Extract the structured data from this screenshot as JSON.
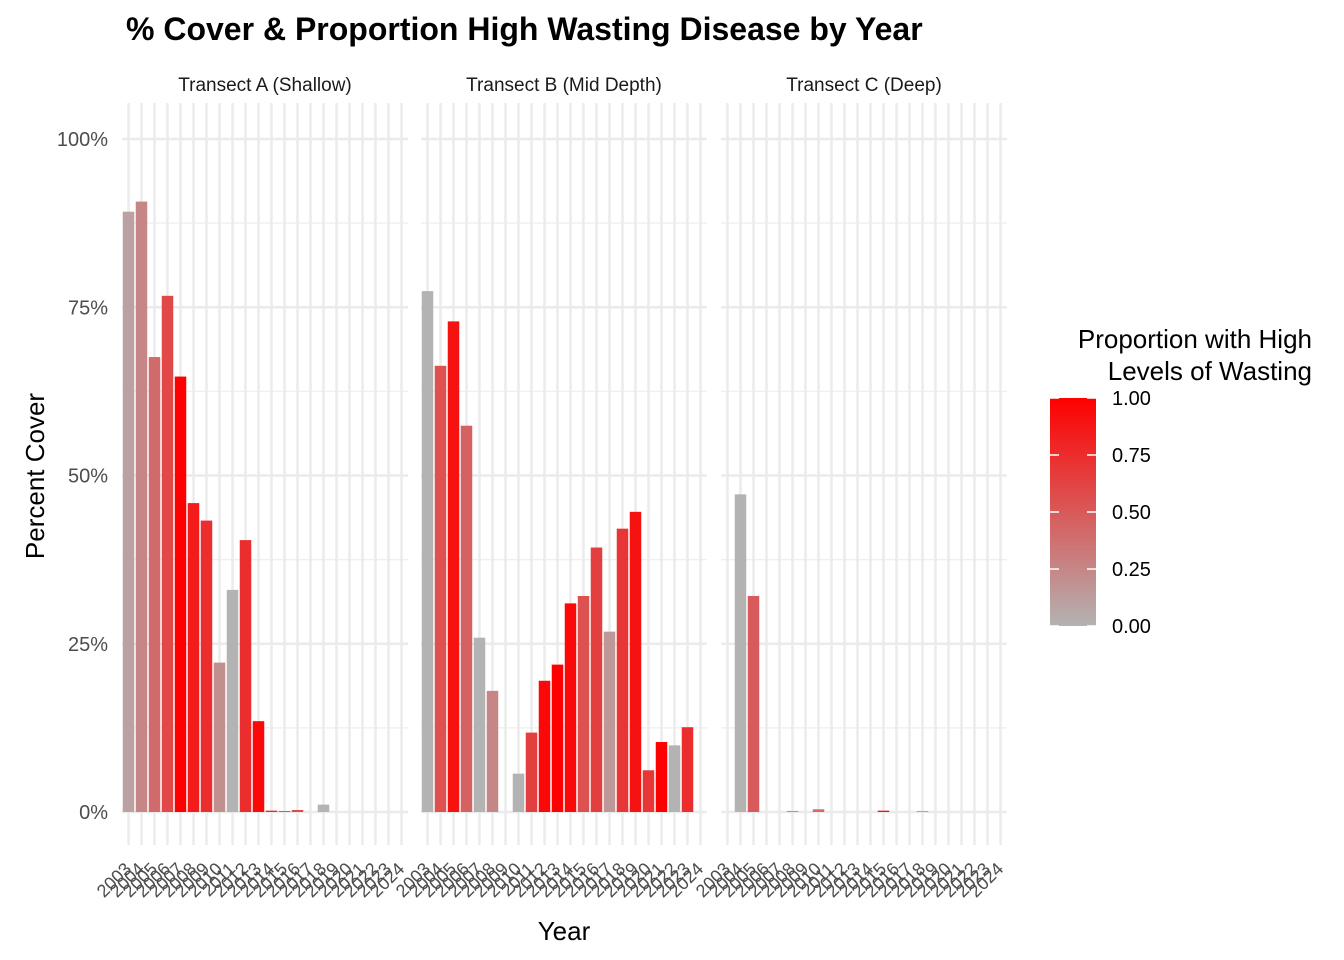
{
  "chart_data": {
    "type": "bar",
    "title": "% Cover & Proportion High Wasting Disease by Year",
    "xlabel": "Year",
    "ylabel": "Percent Cover",
    "ylim": [
      0,
      100
    ],
    "y_ticks": [
      "0%",
      "25%",
      "50%",
      "75%",
      "100%"
    ],
    "y_tick_values": [
      0,
      25,
      50,
      75,
      100
    ],
    "years": [
      2003,
      2004,
      2005,
      2006,
      2007,
      2008,
      2009,
      2010,
      2011,
      2012,
      2013,
      2014,
      2015,
      2016,
      2017,
      2018,
      2019,
      2020,
      2021,
      2022,
      2023,
      2024
    ],
    "grid": true,
    "legend": {
      "title_line1": "Proportion with High",
      "title_line2": "Levels of Wasting",
      "placement": "right",
      "ticks": [
        "1.00",
        "0.75",
        "0.50",
        "0.25",
        "0.00"
      ],
      "tick_values": [
        1.0,
        0.75,
        0.5,
        0.25,
        0.0
      ],
      "low_color": "#b3b3b3",
      "high_color": "#ff0000"
    },
    "facets": [
      {
        "name": "Transect A (Shallow)",
        "bars": [
          {
            "year": 2003,
            "cover": 89.2,
            "wasting": 0.1
          },
          {
            "year": 2004,
            "cover": 90.7,
            "wasting": 0.25
          },
          {
            "year": 2005,
            "cover": 67.6,
            "wasting": 0.4
          },
          {
            "year": 2006,
            "cover": 76.7,
            "wasting": 0.6
          },
          {
            "year": 2007,
            "cover": 64.7,
            "wasting": 1.0
          },
          {
            "year": 2008,
            "cover": 45.9,
            "wasting": 0.85
          },
          {
            "year": 2009,
            "cover": 43.3,
            "wasting": 0.75
          },
          {
            "year": 2010,
            "cover": 22.2,
            "wasting": 0.2
          },
          {
            "year": 2011,
            "cover": 33.0,
            "wasting": 0.0
          },
          {
            "year": 2012,
            "cover": 40.4,
            "wasting": 0.75
          },
          {
            "year": 2013,
            "cover": 13.5,
            "wasting": 0.95
          },
          {
            "year": 2014,
            "cover": 0.2,
            "wasting": 0.8
          },
          {
            "year": 2015,
            "cover": 0.15,
            "wasting": 0.5
          },
          {
            "year": 2016,
            "cover": 0.3,
            "wasting": 0.6
          },
          {
            "year": 2018,
            "cover": 1.1,
            "wasting": 0.0
          }
        ]
      },
      {
        "name": "Transect B (Mid Depth)",
        "bars": [
          {
            "year": 2003,
            "cover": 77.4,
            "wasting": 0.0
          },
          {
            "year": 2004,
            "cover": 66.3,
            "wasting": 0.55
          },
          {
            "year": 2005,
            "cover": 72.9,
            "wasting": 0.9
          },
          {
            "year": 2006,
            "cover": 57.4,
            "wasting": 0.45
          },
          {
            "year": 2007,
            "cover": 25.9,
            "wasting": 0.0
          },
          {
            "year": 2008,
            "cover": 18.0,
            "wasting": 0.25
          },
          {
            "year": 2010,
            "cover": 5.7,
            "wasting": 0.0
          },
          {
            "year": 2011,
            "cover": 11.8,
            "wasting": 0.65
          },
          {
            "year": 2012,
            "cover": 19.5,
            "wasting": 0.95
          },
          {
            "year": 2013,
            "cover": 21.9,
            "wasting": 1.0
          },
          {
            "year": 2014,
            "cover": 31.0,
            "wasting": 0.95
          },
          {
            "year": 2015,
            "cover": 32.1,
            "wasting": 0.55
          },
          {
            "year": 2016,
            "cover": 39.3,
            "wasting": 0.65
          },
          {
            "year": 2017,
            "cover": 26.8,
            "wasting": 0.15
          },
          {
            "year": 2018,
            "cover": 42.1,
            "wasting": 0.7
          },
          {
            "year": 2019,
            "cover": 44.6,
            "wasting": 0.9
          },
          {
            "year": 2020,
            "cover": 6.2,
            "wasting": 0.7
          },
          {
            "year": 2021,
            "cover": 10.4,
            "wasting": 1.0
          },
          {
            "year": 2022,
            "cover": 9.9,
            "wasting": 0.0
          },
          {
            "year": 2023,
            "cover": 12.6,
            "wasting": 0.75
          }
        ]
      },
      {
        "name": "Transect C (Deep)",
        "bars": [
          {
            "year": 2004,
            "cover": 47.2,
            "wasting": 0.0
          },
          {
            "year": 2005,
            "cover": 32.1,
            "wasting": 0.5
          },
          {
            "year": 2008,
            "cover": 0.15,
            "wasting": 0.2
          },
          {
            "year": 2010,
            "cover": 0.4,
            "wasting": 0.4
          },
          {
            "year": 2015,
            "cover": 0.2,
            "wasting": 0.9
          },
          {
            "year": 2018,
            "cover": 0.15,
            "wasting": 0.1
          }
        ]
      }
    ]
  }
}
